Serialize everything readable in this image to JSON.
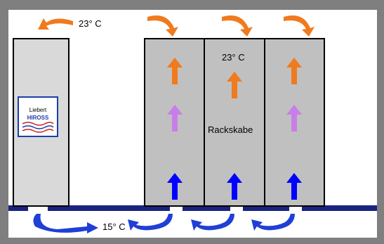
{
  "labels": {
    "top_temp": "23° C",
    "rack_temp": "23° C",
    "rack_name": "Rackskabe",
    "floor_temp": "15° C"
  },
  "cooling_unit": {
    "logo_line1": "Liebert",
    "logo_line2": "HIROSS"
  },
  "colors": {
    "frame": "#7f7f7f",
    "cabinet": "#c0c0c0",
    "unit": "#d9d9d9",
    "floor": "#1a237e",
    "hot_air": "#f07a1e",
    "warm_air": "#c87ee8",
    "cold_air": "#0000ff",
    "floor_flow": "#1f3fd6"
  }
}
